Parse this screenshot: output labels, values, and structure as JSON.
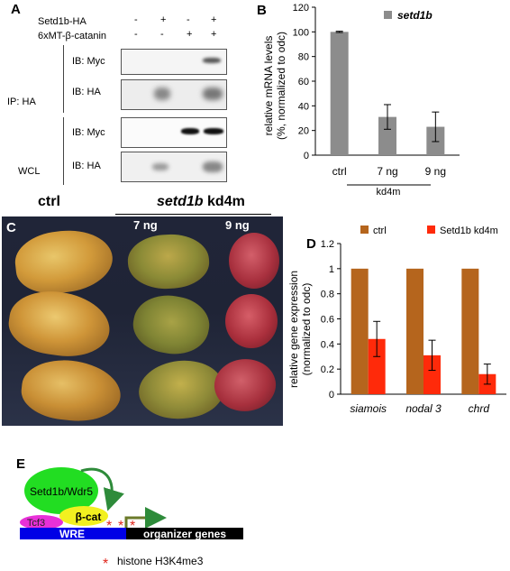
{
  "panel_a": {
    "letter": "A",
    "row1_label": "Setd1b-HA",
    "row2_label": "6xMT-β-catanin",
    "row1_signs": [
      "-",
      "+",
      "-",
      "+"
    ],
    "row2_signs": [
      "-",
      "-",
      "+",
      "+"
    ],
    "ip_label": "IP: HA",
    "wcl_label": "WCL",
    "ib_labels": [
      "IB: Myc",
      "IB: HA",
      "IB: Myc",
      "IB: HA"
    ]
  },
  "panel_b": {
    "letter": "B",
    "legend": "setd1b",
    "ylabel_line1": "relative mRNA levels",
    "ylabel_line2": "(%, normalized to odc)",
    "group_label": "kd4m",
    "colors": {
      "bar": "#8c8c8c"
    }
  },
  "panel_c": {
    "letter": "C",
    "ctrl_label": "ctrl",
    "kd_gene": "setd1b",
    "kd_suffix": " kd4m",
    "dose1": "7 ng",
    "dose2": "9 ng"
  },
  "panel_d": {
    "letter": "D",
    "ylabel_line1": "relative gene expression",
    "ylabel_line2": "(normalized to odc)",
    "colors": {
      "ctrl": "#b5651d",
      "kd": "#ff2a0a"
    }
  },
  "panel_e": {
    "letter": "E",
    "complex_label": "Setd1b/Wdr5",
    "beta_cat": "β-cat",
    "tcf3": "Tcf3",
    "wre": "WRE",
    "organizer": "organizer genes",
    "asterisk": "*",
    "mark_label": "histone H3K4me3"
  },
  "chart_data": [
    {
      "type": "bar",
      "panel": "B",
      "categories": [
        "ctrl",
        "7 ng",
        "9 ng"
      ],
      "series": [
        {
          "name": "setd1b",
          "values": [
            100,
            31,
            23
          ],
          "errors": [
            0.5,
            10,
            12
          ]
        }
      ],
      "ylim": [
        0,
        120
      ],
      "yticks": [
        0,
        20,
        40,
        60,
        80,
        100,
        120
      ],
      "legend_position": "top-right",
      "grid": false
    },
    {
      "type": "bar",
      "panel": "D",
      "categories": [
        "siamois",
        "nodal 3",
        "chrd"
      ],
      "series": [
        {
          "name": "ctrl",
          "values": [
            1,
            1,
            1
          ],
          "errors": [
            0,
            0,
            0
          ]
        },
        {
          "name": "Setd1b kd4m",
          "values": [
            0.44,
            0.31,
            0.16
          ],
          "errors": [
            0.14,
            0.12,
            0.08
          ]
        }
      ],
      "ylim": [
        0,
        1.2
      ],
      "yticks": [
        "0",
        "0.2",
        "0.4",
        "0.6",
        "0.8",
        "1",
        "1.2"
      ],
      "legend_position": "top",
      "grid": false
    }
  ]
}
